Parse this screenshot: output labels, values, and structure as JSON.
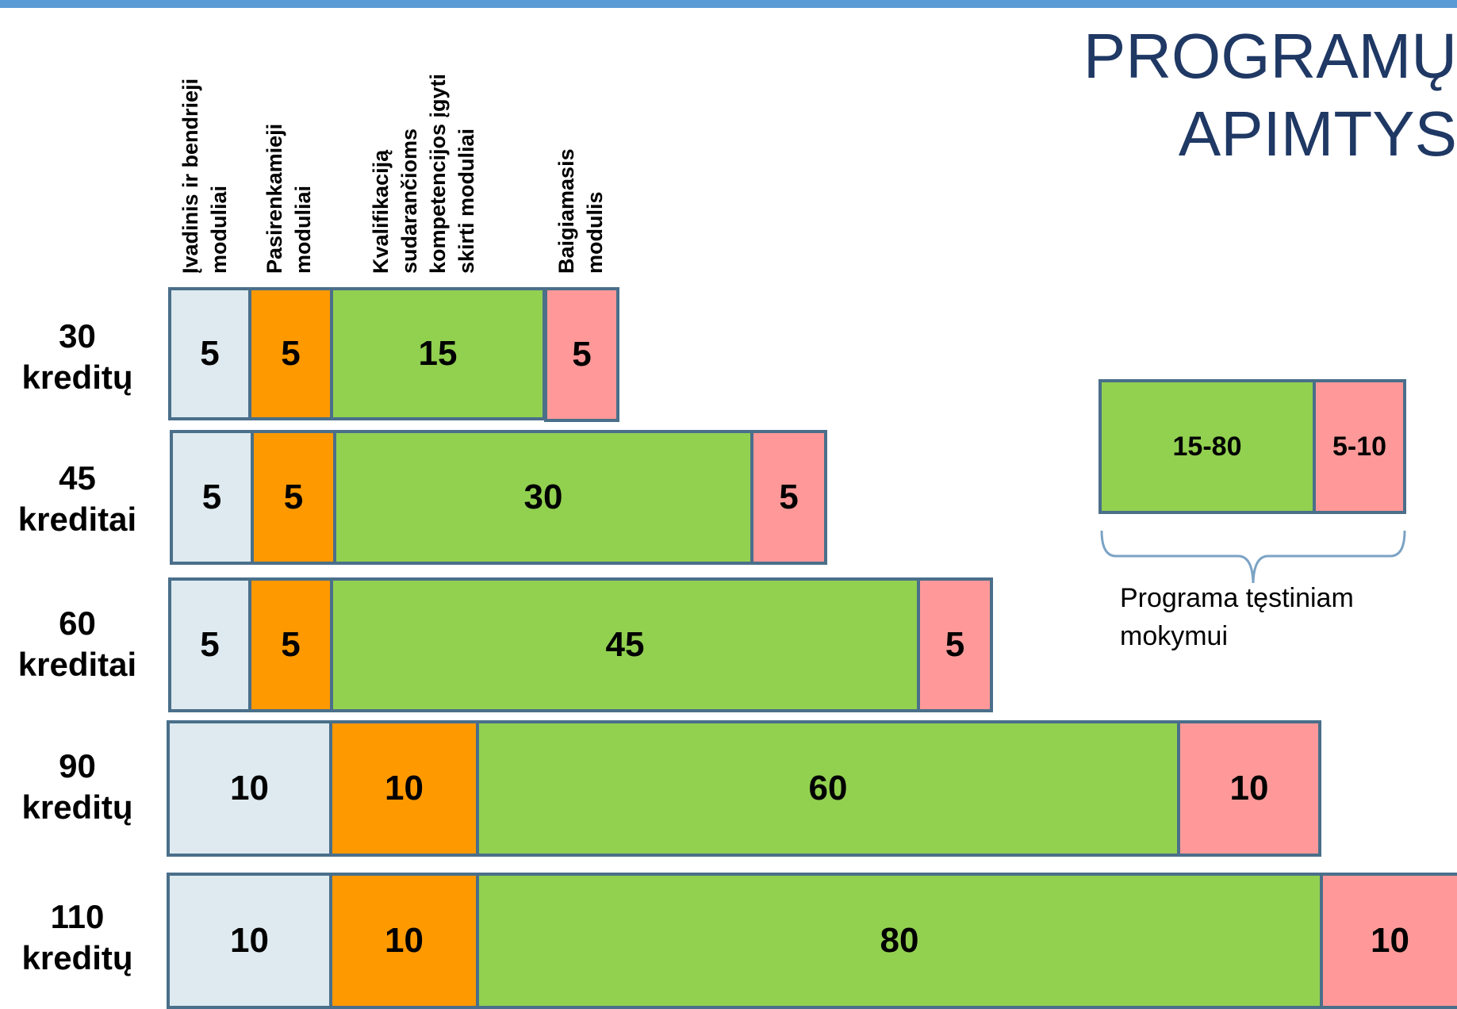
{
  "title": "PROGRAMŲ\nAPIMTYS",
  "columns": [
    {
      "label": "Įvadinis ir bendrieji\nmoduliai",
      "color": "#deeaf0"
    },
    {
      "label": "Pasirenkamieji\nmoduliai",
      "color": "#ff9900"
    },
    {
      "label": "Kvalifikaciją\nsudarančioms\nkompetencijos įgyti\nskirti moduliai",
      "color": "#92d050"
    },
    {
      "label": "Baigiamasis\nmodulis",
      "color": "#ff9999"
    }
  ],
  "rows": [
    {
      "label": "30\nkreditų",
      "values": [
        "5",
        "5",
        "15",
        "5"
      ]
    },
    {
      "label": "45\nkreditai",
      "values": [
        "5",
        "5",
        "30",
        "5"
      ]
    },
    {
      "label": "60\nkreditai",
      "values": [
        "5",
        "5",
        "45",
        "5"
      ]
    },
    {
      "label": "90\nkreditų",
      "values": [
        "10",
        "10",
        "60",
        "10"
      ]
    },
    {
      "label": "110\nkreditų",
      "values": [
        "10",
        "10",
        "80",
        "10"
      ]
    }
  ],
  "legend": {
    "segments": [
      {
        "value": "15-80",
        "color": "#92d050"
      },
      {
        "value": "5-10",
        "color": "#ff9999"
      }
    ],
    "caption": "Programa tęstiniam mokymui"
  }
}
